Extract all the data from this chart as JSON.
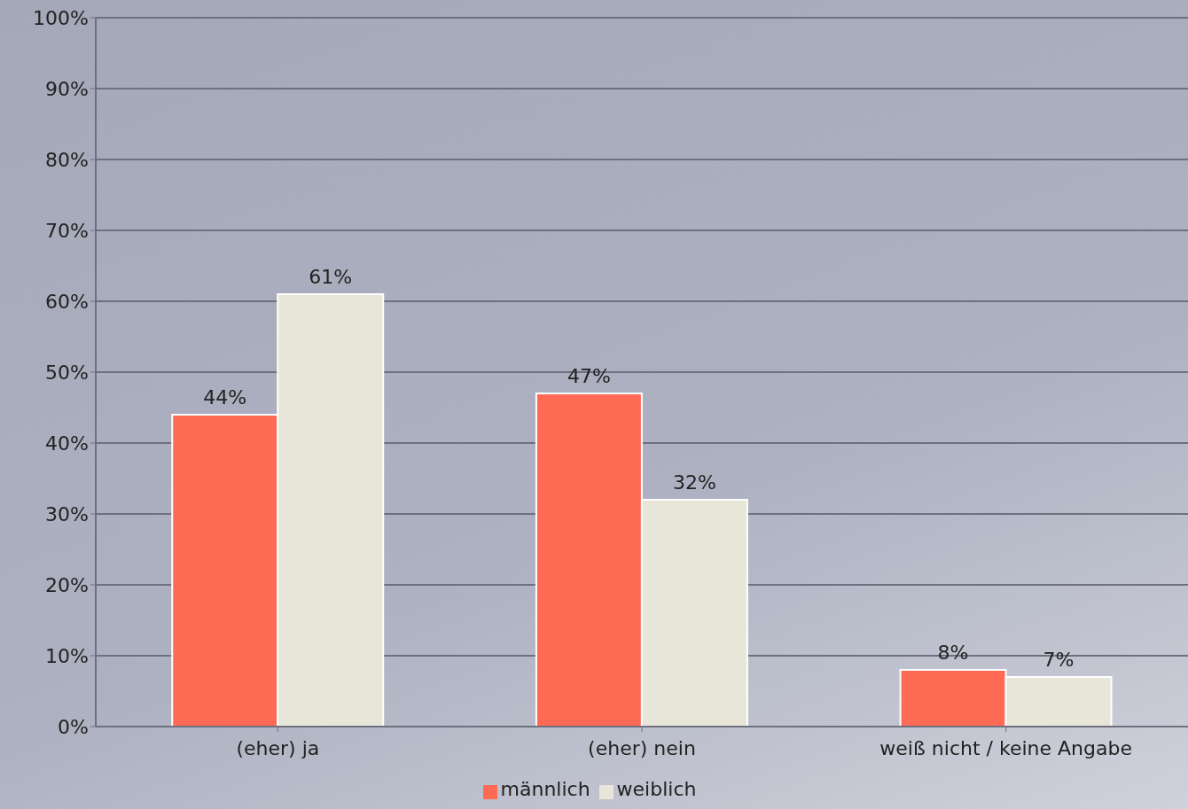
{
  "chart_data": {
    "type": "bar",
    "categories": [
      "(eher) ja",
      "(eher) nein",
      "weiß nicht / keine Angabe"
    ],
    "series": [
      {
        "name": "männlich",
        "color": "#ff6a55",
        "values": [
          44,
          47,
          8
        ],
        "value_labels": [
          "44%",
          "47%",
          "8%"
        ]
      },
      {
        "name": "weiblich",
        "color": "#e8e6d8",
        "values": [
          61,
          32,
          7
        ],
        "value_labels": [
          "61%",
          "32%",
          "7%"
        ]
      }
    ],
    "ylim": [
      0,
      100
    ],
    "yticks": [
      {
        "value": 0,
        "label": "0%"
      },
      {
        "value": 10,
        "label": "10%"
      },
      {
        "value": 20,
        "label": "20%"
      },
      {
        "value": 30,
        "label": "30%"
      },
      {
        "value": 40,
        "label": "40%"
      },
      {
        "value": 50,
        "label": "50%"
      },
      {
        "value": 60,
        "label": "60%"
      },
      {
        "value": 70,
        "label": "70%"
      },
      {
        "value": 80,
        "label": "80%"
      },
      {
        "value": 90,
        "label": "90%"
      },
      {
        "value": 100,
        "label": "100%"
      }
    ],
    "grid": "y",
    "legend": "bottom"
  }
}
